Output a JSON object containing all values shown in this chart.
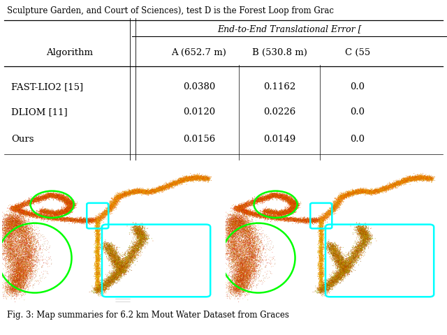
{
  "top_text": "Sculpture Garden, and Court of Sciences), test D is the Forest Loop from Grac",
  "header_span": "End-to-End Translational Error [",
  "col_headers": [
    "Algorithm",
    "A (652.7 m)",
    "B (530.8 m)",
    "C (55"
  ],
  "data_rows": [
    [
      "FAST-LIO2 [15]",
      "0.0380",
      "0.1162",
      "0.0"
    ],
    [
      "DLIOM [11]",
      "0.0120",
      "0.0226",
      "0.0"
    ],
    [
      "Ours",
      "0.0156",
      "0.0149",
      "0.0"
    ]
  ],
  "bottom_caption": "Fig. 3: Map summaries for 6.2 km Mout Water Dataset from Graces",
  "bg_color": "#ffffff"
}
